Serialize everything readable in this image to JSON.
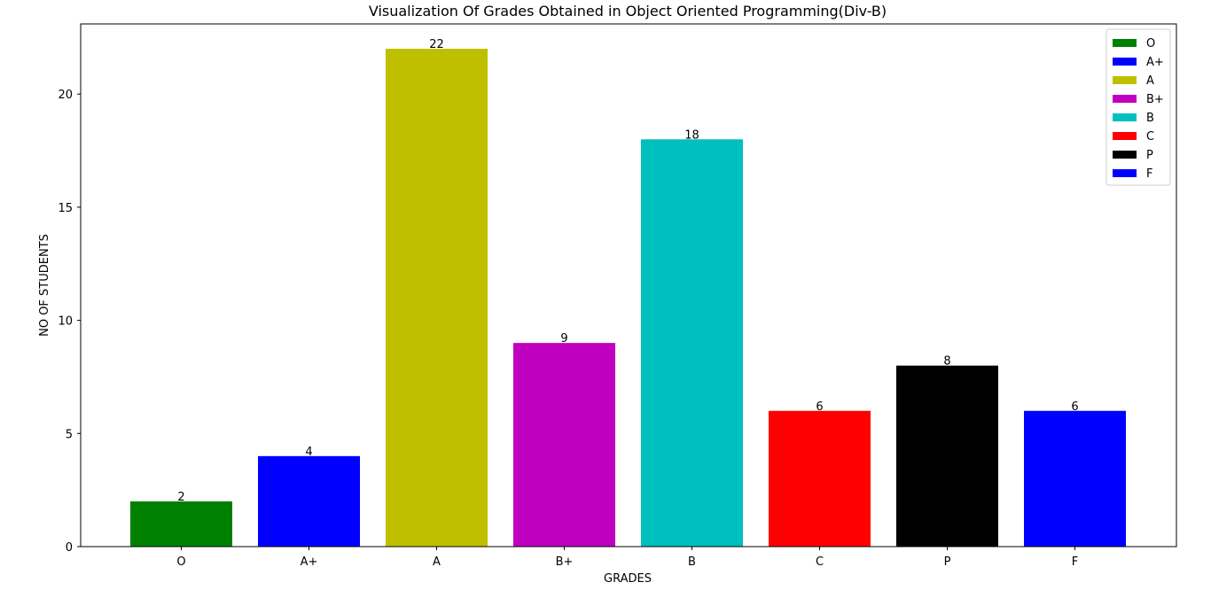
{
  "chart_data": {
    "type": "bar",
    "title": "Visualization Of Grades Obtained in Object Oriented Programming(Div-B)",
    "xlabel": "GRADES",
    "ylabel": "NO OF STUDENTS",
    "categories": [
      "O",
      "A+",
      "A",
      "B+",
      "B",
      "C",
      "P",
      "F"
    ],
    "values": [
      2,
      4,
      22,
      9,
      18,
      6,
      8,
      6
    ],
    "colors": [
      "#008000",
      "#0000ff",
      "#bfbf00",
      "#bf00bf",
      "#00bfbf",
      "#ff0000",
      "#000000",
      "#0000ff"
    ],
    "yticks": [
      0,
      5,
      10,
      15,
      20
    ],
    "ylim": [
      0,
      23.1
    ],
    "grid": false,
    "legend": {
      "position": "top-right",
      "entries": [
        "O",
        "A+",
        "A",
        "B+",
        "B",
        "C",
        "P",
        "F"
      ]
    },
    "data_labels": true
  }
}
